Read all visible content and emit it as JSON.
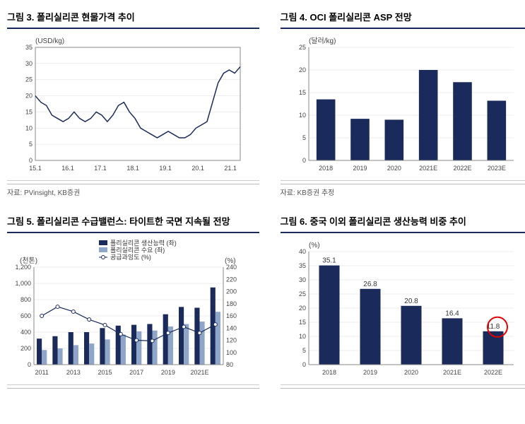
{
  "panels": {
    "p3": {
      "title": "그림 3. 폴리실리콘 현물가격 추이",
      "ylabel": "(USD/kg)",
      "source": "자료: PVinsight, KB증권",
      "ylim": [
        0,
        35
      ],
      "ytick_step": 5,
      "x_categories": [
        "15.1",
        "16.1",
        "17.1",
        "18.1",
        "19.1",
        "20.1",
        "21.1"
      ],
      "line_color": "#1a2a5a",
      "background_color": "#ffffff",
      "grid_color": "#dddddd",
      "series": [
        20,
        18,
        17,
        14,
        13,
        12,
        13,
        15,
        13,
        12,
        13,
        15,
        14,
        12,
        14,
        17,
        18,
        15,
        13,
        10,
        9,
        8,
        7,
        8,
        9,
        8,
        7,
        7,
        8,
        10,
        11,
        12,
        18,
        24,
        27,
        28,
        27,
        29
      ]
    },
    "p4": {
      "title": "그림 4. OCI 폴리실리콘 ASP 전망",
      "ylabel": "(달러/kg)",
      "source": "자료: KB증권 추정",
      "ylim": [
        0,
        25
      ],
      "ytick_step": 5,
      "categories": [
        "2018",
        "2019",
        "2020",
        "2021E",
        "2022E",
        "2023E"
      ],
      "values": [
        13.5,
        9.2,
        9.0,
        20.0,
        17.3,
        13.2
      ],
      "bar_color": "#1a2a5a",
      "grid_color": "#dddddd"
    },
    "p5": {
      "title": "그림 5. 폴리실리콘 수급밸런스: 타이트한 국면 지속될 전망",
      "ylabel_left": "(천톤)",
      "ylabel_right": "(%)",
      "source": "",
      "ylim_left": [
        0,
        1200
      ],
      "ytick_left_step": 200,
      "ylim_right": [
        80,
        240
      ],
      "ytick_right_step": 20,
      "categories": [
        "2011",
        "",
        "2013",
        "",
        "2015",
        "",
        "2017",
        "",
        "2019",
        "",
        "2021E",
        ""
      ],
      "legend": {
        "prod": "폴리실리콘 생산능력 (좌)",
        "demand": "폴리실리콘 수요 (좌)",
        "ratio": "공급과잉도 (%)"
      },
      "colors": {
        "prod": "#1a2a5a",
        "demand": "#8fa6c9",
        "ratio": "#1a2a5a"
      },
      "prod": [
        320,
        350,
        400,
        400,
        450,
        480,
        490,
        500,
        620,
        710,
        700,
        950
      ],
      "demand": [
        180,
        200,
        240,
        260,
        310,
        370,
        410,
        420,
        470,
        500,
        530,
        650
      ],
      "ratio": [
        160,
        175,
        167,
        154,
        145,
        130,
        120,
        119,
        132,
        142,
        132,
        146
      ]
    },
    "p6": {
      "title": "그림 6. 중국 이외 폴리실리콘 생산능력 비중 추이",
      "ylabel": "(%)",
      "source": "",
      "ylim": [
        0,
        40
      ],
      "ytick_step": 5,
      "categories": [
        "2018",
        "2019",
        "2020",
        "2021E",
        "2022E"
      ],
      "values": [
        35.1,
        26.8,
        20.8,
        16.4,
        11.8
      ],
      "bar_color": "#1a2a5a",
      "highlight_index": 4,
      "highlight_color": "#e60000",
      "grid_color": "#dddddd"
    }
  }
}
